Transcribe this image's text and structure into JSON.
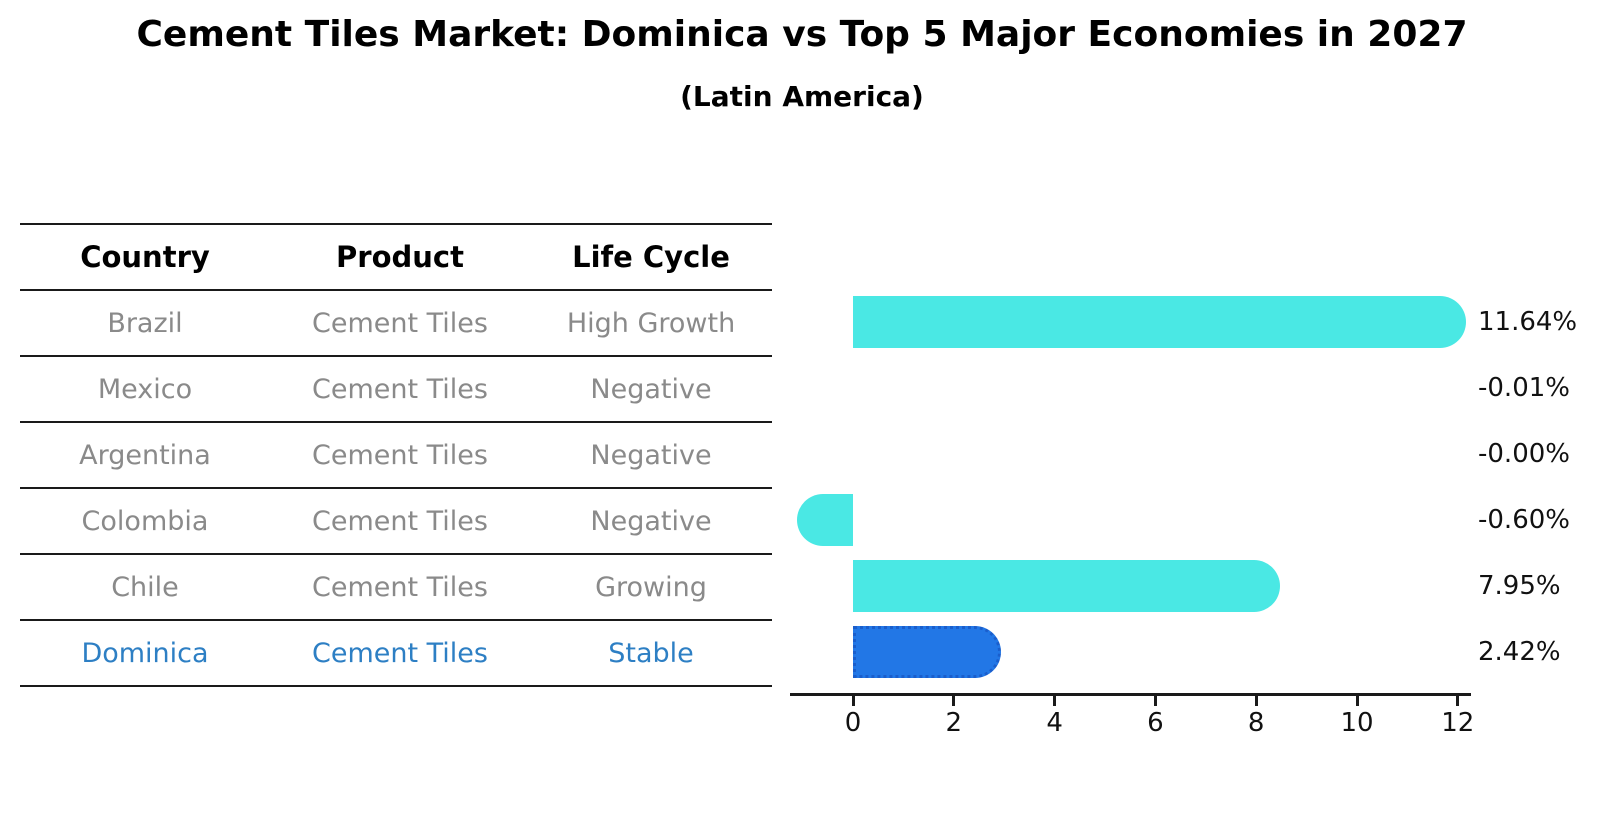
{
  "title": "Cement Tiles Market: Dominica vs Top 5 Major Economies in 2027",
  "subtitle": "(Latin America)",
  "colors": {
    "bar_cyan": "#4ae8e4",
    "bar_blue": "#2277e6",
    "bar_blue_border": "#1a5ecc",
    "highlight_text": "#2d7fc4",
    "table_text": "#8a8a8a",
    "axis_text": "#111111"
  },
  "table": {
    "headers": [
      "Country",
      "Product",
      "Life Cycle"
    ],
    "rows": [
      {
        "country": "Brazil",
        "product": "Cement Tiles",
        "life_cycle": "High Growth",
        "highlight": false
      },
      {
        "country": "Mexico",
        "product": "Cement Tiles",
        "life_cycle": "Negative",
        "highlight": false
      },
      {
        "country": "Argentina",
        "product": "Cement Tiles",
        "life_cycle": "Negative",
        "highlight": false
      },
      {
        "country": "Colombia",
        "product": "Cement Tiles",
        "life_cycle": "Negative",
        "highlight": false
      },
      {
        "country": "Chile",
        "product": "Cement Tiles",
        "life_cycle": "Growing",
        "highlight": false
      },
      {
        "country": "Dominica",
        "product": "Cement Tiles",
        "life_cycle": "Stable",
        "highlight": true
      }
    ]
  },
  "chart_data": {
    "type": "bar",
    "orientation": "horizontal",
    "categories": [
      "Brazil",
      "Mexico",
      "Argentina",
      "Colombia",
      "Chile",
      "Dominica"
    ],
    "values": [
      11.64,
      -0.01,
      -0.0,
      -0.6,
      7.95,
      2.42
    ],
    "value_labels": [
      "11.64%",
      "-0.01%",
      "-0.00%",
      "-0.60%",
      "7.95%",
      "2.42%"
    ],
    "highlight_category": "Dominica",
    "x_ticks": [
      0,
      2,
      4,
      6,
      8,
      10,
      12
    ],
    "xlim": [
      -1.25,
      12.25
    ],
    "grid": false,
    "legend": false,
    "xlabel": "",
    "ylabel": ""
  }
}
